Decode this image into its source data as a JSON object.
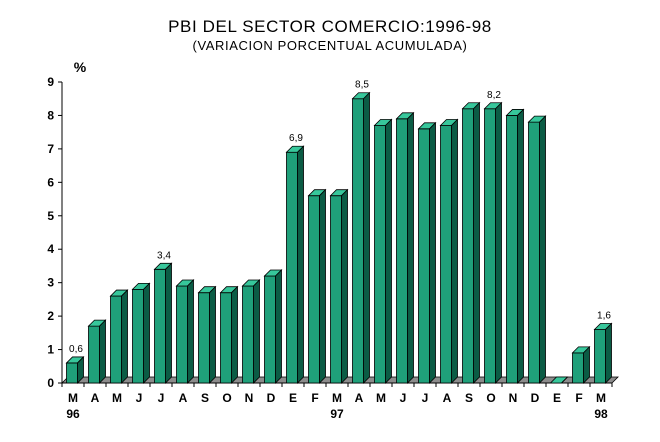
{
  "chart_data": {
    "type": "bar",
    "title": "PBI DEL SECTOR COMERCIO:1996-98",
    "subtitle": "(VARIACION PORCENTUAL ACUMULADA)",
    "ylabel": "%",
    "xlabel": "",
    "ylim": [
      0,
      9
    ],
    "yticks": [
      "0",
      "1",
      "2",
      "3",
      "4",
      "5",
      "6",
      "7",
      "8",
      "9"
    ],
    "grid": false,
    "categories": [
      "M",
      "A",
      "M",
      "J",
      "J",
      "A",
      "S",
      "O",
      "N",
      "D",
      "E",
      "F",
      "M",
      "A",
      "M",
      "J",
      "J",
      "A",
      "S",
      "O",
      "N",
      "D",
      "E",
      "F",
      "M"
    ],
    "year_labels": [
      {
        "index": 0,
        "text": "96"
      },
      {
        "index": 12,
        "text": "97"
      },
      {
        "index": 24,
        "text": "98"
      }
    ],
    "values": [
      0.6,
      1.7,
      2.6,
      2.8,
      3.4,
      2.9,
      2.7,
      2.7,
      2.9,
      3.2,
      6.9,
      5.6,
      5.6,
      8.5,
      7.7,
      7.9,
      7.6,
      7.7,
      8.2,
      8.2,
      8.0,
      7.8,
      0.0,
      0.9,
      1.6
    ],
    "data_labels": [
      {
        "index": 0,
        "text": "0,6"
      },
      {
        "index": 4,
        "text": "3,4"
      },
      {
        "index": 10,
        "text": "6,9"
      },
      {
        "index": 13,
        "text": "8,5"
      },
      {
        "index": 19,
        "text": "8,2"
      },
      {
        "index": 24,
        "text": "1,6"
      }
    ],
    "colors": {
      "bar_front": "#1fa07a",
      "bar_top": "#37c79b",
      "bar_side": "#0b5c45",
      "floor": "#8c8c8c"
    }
  }
}
